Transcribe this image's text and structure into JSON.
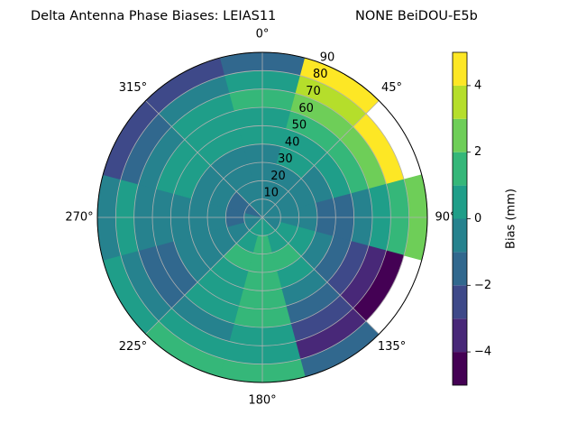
{
  "chart_data": {
    "type": "polar_contour",
    "title": "Delta Antenna Phase Biases: LEIAS11",
    "subtitle": "NONE BeiDOU-E5b",
    "azimuths": [
      0,
      30,
      60,
      90,
      120,
      150,
      180,
      210,
      240,
      270,
      300,
      330
    ],
    "zenith_edges": [
      0,
      10,
      20,
      30,
      40,
      50,
      60,
      70,
      80,
      90
    ],
    "values": [
      [
        -0.5,
        -0.5,
        -0.5,
        -0.5,
        0.5,
        0.5,
        1.5,
        0.5,
        -1.5
      ],
      [
        -0.5,
        -0.5,
        -0.5,
        0.5,
        0.5,
        1.5,
        2.5,
        3.5,
        4.5
      ],
      [
        -0.5,
        -0.5,
        -0.5,
        -0.5,
        0.5,
        1.5,
        2.5,
        4.5,
        null
      ],
      [
        -0.5,
        -0.5,
        -0.5,
        -1.5,
        -1.5,
        -0.5,
        0.5,
        1.5,
        2.5
      ],
      [
        -0.5,
        0.5,
        0.5,
        -0.5,
        -1.5,
        -2.5,
        -3.5,
        -4.5,
        null
      ],
      [
        0.5,
        0.5,
        1.5,
        0.5,
        -0.5,
        -1.5,
        -2.5,
        -3.5,
        -1.5
      ],
      [
        0.5,
        1.5,
        1.5,
        1.5,
        1.5,
        1.5,
        0.5,
        0.5,
        1.5
      ],
      [
        0.5,
        0.5,
        1.5,
        0.5,
        0.5,
        0.5,
        -0.5,
        0.5,
        1.5
      ],
      [
        -0.5,
        -0.5,
        -0.5,
        -0.5,
        -0.5,
        -1.5,
        -1.5,
        -0.5,
        0.5
      ],
      [
        -0.5,
        -1.5,
        -0.5,
        -0.5,
        -0.5,
        -0.5,
        -0.5,
        0.5,
        -0.5
      ],
      [
        -1.5,
        -1.5,
        -0.5,
        -0.5,
        0.5,
        0.5,
        -0.5,
        -1.5,
        -2.5
      ],
      [
        -0.5,
        -0.5,
        -0.5,
        -0.5,
        0.5,
        0.5,
        0.5,
        -0.5,
        -2.5
      ]
    ],
    "rlim": [
      0,
      90
    ],
    "rticks": [
      10,
      20,
      30,
      40,
      50,
      60,
      70,
      80,
      90
    ],
    "thetaticks": [
      {
        "value": 0,
        "label": "0°"
      },
      {
        "value": 45,
        "label": "45°"
      },
      {
        "value": 90,
        "label": "90°"
      },
      {
        "value": 135,
        "label": "135°"
      },
      {
        "value": 180,
        "label": "180°"
      },
      {
        "value": 225,
        "label": "225°"
      },
      {
        "value": 270,
        "label": "270°"
      },
      {
        "value": 315,
        "label": "315°"
      }
    ],
    "grid": true,
    "levels": [
      -5,
      -4,
      -3,
      -2,
      -1,
      0,
      1,
      2,
      3,
      4,
      5
    ],
    "colors": [
      "#440154",
      "#482878",
      "#3e4989",
      "#31688e",
      "#26828e",
      "#1f9e89",
      "#35b779",
      "#6ece58",
      "#b5de2b",
      "#fde725"
    ],
    "clim": [
      -5,
      5
    ],
    "colorbar_ticks": [
      {
        "value": -4,
        "label": "−4"
      },
      {
        "value": -2,
        "label": "−2"
      },
      0,
      2,
      4
    ],
    "colorbar_label": "Bias (mm)"
  }
}
